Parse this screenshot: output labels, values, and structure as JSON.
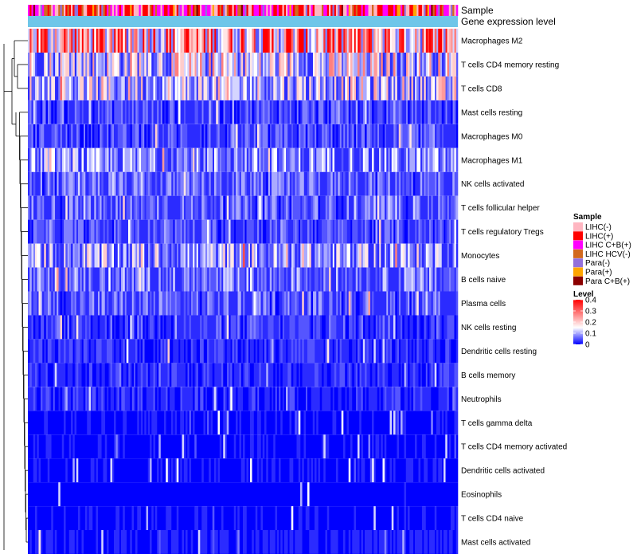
{
  "chart_data": {
    "type": "heatmap",
    "title": "",
    "annotation_tracks": [
      "Sample",
      "Gene expression level"
    ],
    "rows": [
      {
        "name": "Macrophages M2",
        "mean_level": 0.3
      },
      {
        "name": "T cells CD4 memory resting",
        "mean_level": 0.16
      },
      {
        "name": "T cells CD8",
        "mean_level": 0.14
      },
      {
        "name": "Mast cells resting",
        "mean_level": 0.05
      },
      {
        "name": "Macrophages M0",
        "mean_level": 0.05
      },
      {
        "name": "Macrophages M1",
        "mean_level": 0.09
      },
      {
        "name": "NK cells activated",
        "mean_level": 0.06
      },
      {
        "name": "T cells follicular helper",
        "mean_level": 0.06
      },
      {
        "name": "T cells regulatory  Tregs",
        "mean_level": 0.05
      },
      {
        "name": "Monocytes",
        "mean_level": 0.11
      },
      {
        "name": "B cells naive",
        "mean_level": 0.07
      },
      {
        "name": "Plasma cells",
        "mean_level": 0.06
      },
      {
        "name": "NK cells resting",
        "mean_level": 0.04
      },
      {
        "name": "Dendritic cells resting",
        "mean_level": 0.03
      },
      {
        "name": "B cells memory",
        "mean_level": 0.03
      },
      {
        "name": "Neutrophils",
        "mean_level": 0.03
      },
      {
        "name": "T cells gamma delta",
        "mean_level": 0.01
      },
      {
        "name": "T cells CD4 memory activated",
        "mean_level": 0.01
      },
      {
        "name": "Dendritic cells activated",
        "mean_level": 0.01
      },
      {
        "name": "Eosinophils",
        "mean_level": 0.005
      },
      {
        "name": "T cells CD4 naive",
        "mean_level": 0.01
      },
      {
        "name": "Mast cells activated",
        "mean_level": 0.02
      }
    ],
    "sample_legend": {
      "title": "Sample",
      "items": [
        {
          "label": "LIHC(-)",
          "color": "#FFB6C1"
        },
        {
          "label": "LIHC(+)",
          "color": "#FF0000"
        },
        {
          "label": "LIHC C+B(+)",
          "color": "#FF00FF"
        },
        {
          "label": "LIHC HCV(-)",
          "color": "#D2691E"
        },
        {
          "label": "Para(-)",
          "color": "#9370DB"
        },
        {
          "label": "Para(+)",
          "color": "#FFA500"
        },
        {
          "label": "Para C+B(+)",
          "color": "#8B0000"
        }
      ]
    },
    "level_legend": {
      "title": "Level",
      "ticks": [
        "0.4",
        "0.3",
        "0.2",
        "0.1",
        "0"
      ],
      "range": [
        0,
        0.4
      ],
      "colors": [
        "#0000FF",
        "#FFFFFF",
        "#FF0000"
      ]
    },
    "expression_track_color": "#6EC6E9",
    "colors": {
      "low": "#0000FF",
      "mid": "#FFFFFF",
      "high": "#FF0000"
    }
  }
}
